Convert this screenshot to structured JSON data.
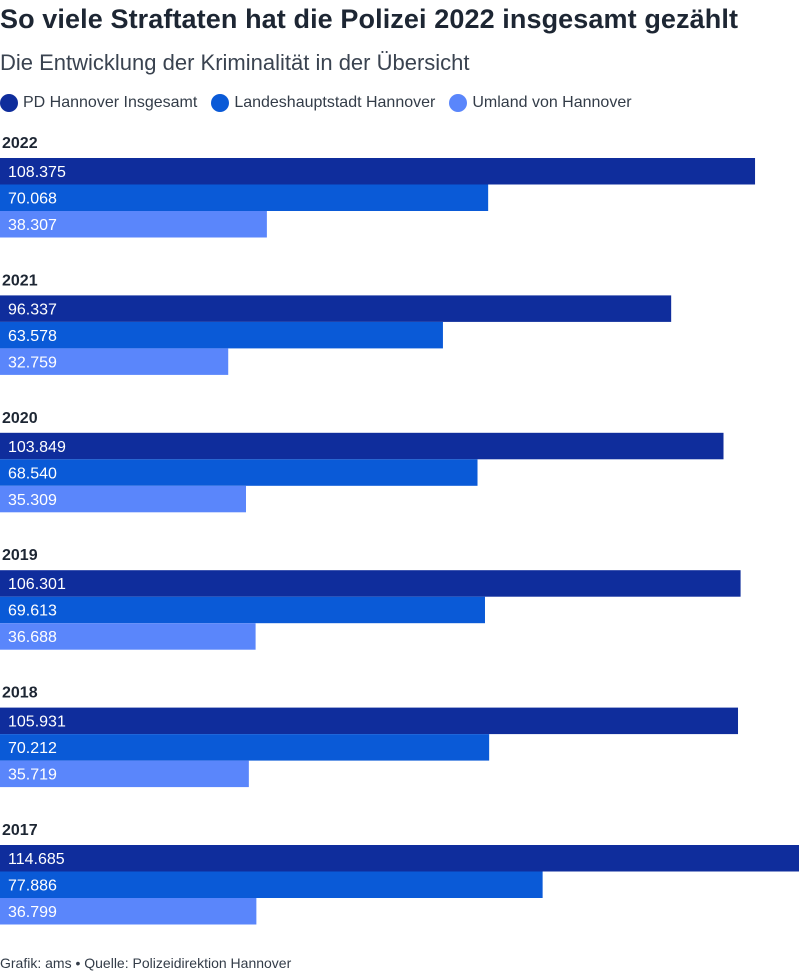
{
  "chart_data": {
    "type": "bar",
    "orientation": "horizontal",
    "title": "So viele Straftaten hat die Polizei 2022 insgesamt gezählt",
    "subtitle": "Die Entwicklung der Kriminalität in der Übersicht",
    "categories": [
      "2022",
      "2021",
      "2020",
      "2019",
      "2018",
      "2017"
    ],
    "series": [
      {
        "name": "PD Hannover Insgesamt",
        "color": "#0f2d9c",
        "values": [
          108375,
          96337,
          103849,
          106301,
          105931,
          114685
        ],
        "labels": [
          "108.375",
          "96.337",
          "103.849",
          "106.301",
          "105.931",
          "114.685"
        ]
      },
      {
        "name": "Landeshauptstadt Hannover",
        "color": "#0a5ad7",
        "values": [
          70068,
          63578,
          68540,
          69613,
          70212,
          77886
        ],
        "labels": [
          "70.068",
          "63.578",
          "68.540",
          "69.613",
          "70.212",
          "77.886"
        ]
      },
      {
        "name": "Umland von Hannover",
        "color": "#5a86fb",
        "values": [
          38307,
          32759,
          35309,
          36688,
          35719,
          36799
        ],
        "labels": [
          "38.307",
          "32.759",
          "35.309",
          "36.688",
          "35.719",
          "36.799"
        ]
      }
    ],
    "xlim": [
      0,
      114685
    ],
    "legend_position": "top-left",
    "grid": false
  },
  "footer": "Grafik: ams • Quelle: Polizeidirektion Hannover"
}
